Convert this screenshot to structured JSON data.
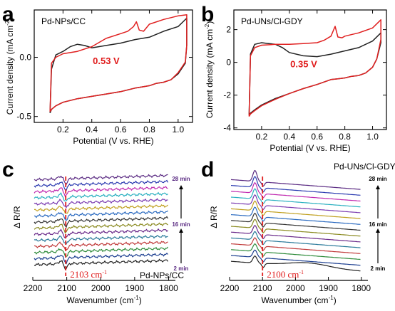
{
  "chart_data": [
    {
      "panel": "a",
      "type": "line",
      "sample": "Pd-NPs/CC",
      "xlabel": "Potential (V vs. RHE)",
      "ylabel": "Current density (mA cm",
      "ylabel_sup": "-2",
      "ylabel_end": ")",
      "xlim": [
        0.0,
        1.1
      ],
      "ylim": [
        -0.55,
        0.4
      ],
      "xticks": [
        0.2,
        0.4,
        0.6,
        0.8,
        1.0
      ],
      "xtick_labels": [
        "0.2",
        "0.4",
        "0.6",
        "0.8",
        "1.0"
      ],
      "yticks": [
        0.0,
        -0.5
      ],
      "ytick_labels": [
        "0.0",
        "-0.5"
      ],
      "annotation": "0.53 V",
      "series": [
        {
          "color": "#222222",
          "x": [
            0.11,
            0.12,
            0.15,
            0.2,
            0.25,
            0.3,
            0.35,
            0.4,
            0.5,
            0.6,
            0.7,
            0.8,
            0.9,
            1.0,
            1.06,
            1.06,
            1.05,
            1.0,
            0.95,
            0.9,
            0.85,
            0.8,
            0.75,
            0.7,
            0.6,
            0.5,
            0.4,
            0.3,
            0.2,
            0.15,
            0.12,
            0.11
          ],
          "y": [
            -0.47,
            -0.1,
            0.02,
            0.05,
            0.09,
            0.11,
            0.1,
            0.08,
            0.1,
            0.12,
            0.15,
            0.17,
            0.22,
            0.26,
            0.33,
            0.1,
            -0.05,
            -0.14,
            -0.19,
            -0.21,
            -0.22,
            -0.24,
            -0.25,
            -0.26,
            -0.29,
            -0.31,
            -0.33,
            -0.35,
            -0.38,
            -0.41,
            -0.44,
            -0.47
          ]
        },
        {
          "color": "#e02020",
          "x": [
            0.11,
            0.12,
            0.15,
            0.2,
            0.3,
            0.4,
            0.5,
            0.6,
            0.65,
            0.69,
            0.71,
            0.73,
            0.76,
            0.8,
            0.9,
            1.0,
            1.06,
            1.06,
            1.05,
            1.0,
            0.95,
            0.9,
            0.85,
            0.8,
            0.75,
            0.7,
            0.6,
            0.5,
            0.4,
            0.3,
            0.2,
            0.15,
            0.12,
            0.11
          ],
          "y": [
            -0.46,
            -0.05,
            0.0,
            0.03,
            0.05,
            0.09,
            0.16,
            0.2,
            0.22,
            0.26,
            0.3,
            0.23,
            0.22,
            0.28,
            0.32,
            0.35,
            0.36,
            0.1,
            -0.04,
            -0.13,
            -0.19,
            -0.21,
            -0.22,
            -0.24,
            -0.25,
            -0.26,
            -0.29,
            -0.31,
            -0.33,
            -0.35,
            -0.38,
            -0.41,
            -0.44,
            -0.46
          ]
        }
      ]
    },
    {
      "panel": "b",
      "type": "line",
      "sample": "Pd-UNs/Cl-GDY",
      "xlabel": "Potential (V vs. RHE)",
      "ylabel": "Current density (mA cm",
      "ylabel_sup": "-2",
      "ylabel_end": ")",
      "xlim": [
        0.0,
        1.1
      ],
      "ylim": [
        -4.1,
        3.2
      ],
      "xticks": [
        0.2,
        0.4,
        0.6,
        0.8,
        1.0
      ],
      "xtick_labels": [
        "0.2",
        "0.4",
        "0.6",
        "0.8",
        "1.0"
      ],
      "yticks": [
        2,
        0,
        -2,
        -4
      ],
      "ytick_labels": [
        "2",
        "0",
        "-2",
        "-4"
      ],
      "annotation": "0.35 V",
      "series": [
        {
          "color": "#222222",
          "x": [
            0.11,
            0.12,
            0.15,
            0.2,
            0.25,
            0.3,
            0.35,
            0.4,
            0.5,
            0.6,
            0.7,
            0.8,
            0.9,
            1.0,
            1.06,
            1.06,
            1.03,
            1.0,
            0.95,
            0.9,
            0.85,
            0.8,
            0.75,
            0.7,
            0.6,
            0.5,
            0.4,
            0.3,
            0.2,
            0.15,
            0.12,
            0.11
          ],
          "y": [
            -3.2,
            0.5,
            1.1,
            1.2,
            1.15,
            1.1,
            0.9,
            0.6,
            0.4,
            0.35,
            0.5,
            0.7,
            0.9,
            1.3,
            1.8,
            1.2,
            0.2,
            -0.3,
            -0.65,
            -0.8,
            -0.85,
            -0.95,
            -1.0,
            -1.05,
            -1.35,
            -1.6,
            -1.9,
            -2.2,
            -2.6,
            -2.9,
            -3.1,
            -3.2
          ]
        },
        {
          "color": "#e02020",
          "x": [
            0.11,
            0.12,
            0.15,
            0.2,
            0.3,
            0.4,
            0.5,
            0.6,
            0.65,
            0.7,
            0.73,
            0.75,
            0.78,
            0.8,
            0.9,
            1.0,
            1.06,
            1.06,
            1.03,
            1.0,
            0.95,
            0.9,
            0.85,
            0.8,
            0.75,
            0.7,
            0.6,
            0.5,
            0.4,
            0.3,
            0.2,
            0.15,
            0.12,
            0.11
          ],
          "y": [
            -3.3,
            0.4,
            0.9,
            1.05,
            1.1,
            1.1,
            1.15,
            1.2,
            1.35,
            1.6,
            2.2,
            1.55,
            1.5,
            1.6,
            1.8,
            2.1,
            2.6,
            1.4,
            0.2,
            -0.3,
            -0.65,
            -0.8,
            -0.85,
            -0.95,
            -1.0,
            -1.05,
            -1.35,
            -1.6,
            -1.9,
            -2.25,
            -2.65,
            -2.95,
            -3.15,
            -3.3
          ]
        }
      ]
    },
    {
      "panel": "c",
      "type": "line",
      "sample": "Pd-NPs/CC",
      "xlabel": "Wavenumber (cm",
      "xlabel_sup": "-1",
      "xlabel_end": ")",
      "ylabel": "Δ R/R",
      "xlim": [
        2200,
        1780
      ],
      "xticks": [
        2200,
        2100,
        2000,
        1900,
        1800
      ],
      "xtick_labels": [
        "2200",
        "2100",
        "2000",
        "1900",
        "1800"
      ],
      "peak_label": "2103 cm",
      "peak_sup": "-1",
      "peak_position": 2103,
      "time_labels": [
        "28 min",
        "16 min",
        "2 min"
      ],
      "colors": [
        "#222222",
        "#1a3d8f",
        "#2e8b3a",
        "#c03a3a",
        "#2a7a9a",
        "#6a2a8a",
        "#8a8a20",
        "#333333",
        "#2a6ac0",
        "#c0a020",
        "#7a3ab0",
        "#2ab0c0",
        "#c02ab0",
        "#2a3ab0",
        "#5a2a82"
      ]
    },
    {
      "panel": "d",
      "type": "line",
      "sample": "Pd-UNs/Cl-GDY",
      "xlabel": "Wavenumber (cm",
      "xlabel_sup": "-1",
      "xlabel_end": ")",
      "ylabel": "Δ R/R",
      "xlim": [
        2200,
        1780
      ],
      "xticks": [
        2200,
        2100,
        2000,
        1900,
        1800
      ],
      "xtick_labels": [
        "2200",
        "2100",
        "2000",
        "1900",
        "1800"
      ],
      "peak_label": "2100 cm",
      "peak_sup": "-1",
      "peak_position": 2100,
      "time_labels": [
        "28 min",
        "16 min",
        "2 min"
      ],
      "colors": [
        "#222222",
        "#1a3d8f",
        "#2e8b3a",
        "#c03a3a",
        "#2a7a9a",
        "#6a2a8a",
        "#8a8a20",
        "#333333",
        "#2a6ac0",
        "#c0a020",
        "#7a3ab0",
        "#2ab0c0",
        "#c02ab0",
        "#2a3ab0",
        "#5a2a82"
      ]
    }
  ]
}
